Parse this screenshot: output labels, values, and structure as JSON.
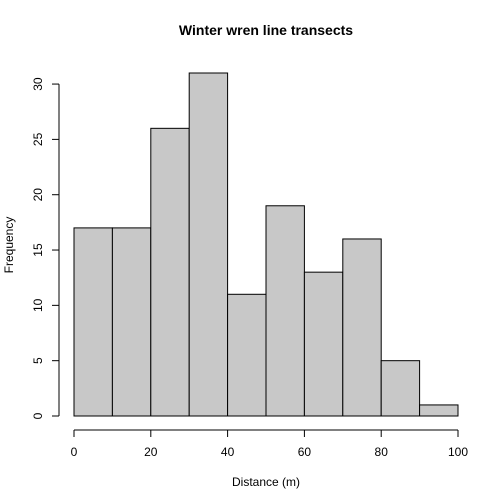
{
  "chart_data": {
    "type": "bar",
    "title": "Winter wren line transects",
    "xlabel": "Distance (m)",
    "ylabel": "Frequency",
    "bins": [
      {
        "from": 0,
        "to": 10,
        "count": 17
      },
      {
        "from": 10,
        "to": 20,
        "count": 17
      },
      {
        "from": 20,
        "to": 30,
        "count": 26
      },
      {
        "from": 30,
        "to": 40,
        "count": 31
      },
      {
        "from": 40,
        "to": 50,
        "count": 11
      },
      {
        "from": 50,
        "to": 60,
        "count": 19
      },
      {
        "from": 60,
        "to": 70,
        "count": 13
      },
      {
        "from": 70,
        "to": 80,
        "count": 16
      },
      {
        "from": 80,
        "to": 90,
        "count": 5
      },
      {
        "from": 90,
        "to": 100,
        "count": 1
      }
    ],
    "xlim": [
      0,
      100
    ],
    "ylim": [
      0,
      31
    ],
    "x_ticks": [
      "0",
      "20",
      "40",
      "60",
      "80",
      "100"
    ],
    "y_ticks": [
      "0",
      "5",
      "10",
      "15",
      "20",
      "25",
      "30"
    ],
    "bar_color": "#c8c8c8",
    "grid": false,
    "legend": "none"
  }
}
